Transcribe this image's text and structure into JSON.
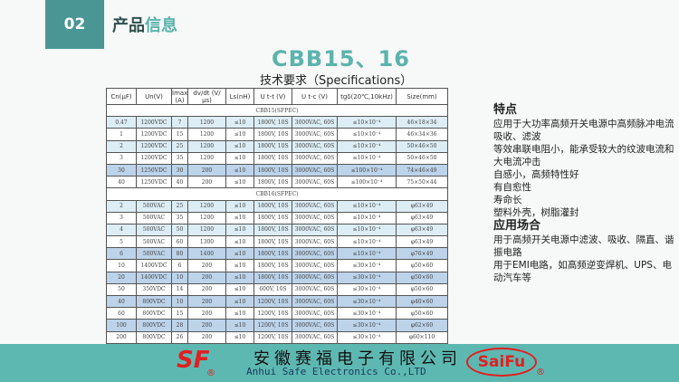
{
  "header": {
    "number": "02",
    "title_a": "产品",
    "title_b": "信息"
  },
  "model": "CBB15、16",
  "spec_title": "技术要求（Specifications）",
  "table": {
    "columns": [
      "Cn(μF)",
      "Un(V)",
      "Imax (A)",
      "dv/dt (V/μs)",
      "Ls(nH)",
      "U t-t (V)",
      "U t-c (V)",
      "tgδ(20℃,10kHz)",
      "Size(mm)"
    ],
    "section1": "CBB15(SFPEC)",
    "rows1": [
      [
        "0.47",
        "1200VDC",
        "7",
        "1200",
        "≤10",
        "1800V, 10S",
        "3000VAC, 60S",
        "≤10×10⁻⁴",
        "46×18×34"
      ],
      [
        "1",
        "1200VDC",
        "15",
        "1200",
        "≤10",
        "1800V, 10S",
        "3000VAC, 60S",
        "≤10×10⁻⁴",
        "46×34×36"
      ],
      [
        "2",
        "1200VDC",
        "25",
        "1200",
        "≤10",
        "1800V, 10S",
        "3000VAC, 60S",
        "≤10×10⁻⁴",
        "50×46×50"
      ],
      [
        "3",
        "1200VDC",
        "35",
        "1200",
        "≤10",
        "1800V, 10S",
        "3000VAC, 60S",
        "≤10×10⁻⁴",
        "50×46×50"
      ],
      [
        "30",
        "1250VDC",
        "30",
        "200",
        "≤10",
        "1800V, 10S",
        "3000VAC, 60S",
        "≤100×10⁻⁴",
        "74×46×49"
      ],
      [
        "40",
        "1250VDC",
        "40",
        "200",
        "≤10",
        "1800V, 10S",
        "3000VAC, 60S",
        "≤100×10⁻⁴",
        "75×50×44"
      ]
    ],
    "section2": "CBB16(SFPEC)",
    "rows2": [
      [
        "2",
        "500VAC",
        "25",
        "1200",
        "≤10",
        "1800V, 10S",
        "3000VAC, 60S",
        "≤10×10⁻⁴",
        "φ63×49"
      ],
      [
        "3",
        "500VAC",
        "35",
        "1200",
        "≤10",
        "1800V, 10S",
        "3000VAC, 60S",
        "≤10×10⁻⁴",
        "φ63×49"
      ],
      [
        "4",
        "500VAC",
        "50",
        "1200",
        "≤10",
        "1800V, 10S",
        "3000VAC, 60S",
        "≤10×10⁻⁴",
        "φ63×49"
      ],
      [
        "5",
        "500VAC",
        "60",
        "1300",
        "≤10",
        "1800V, 10S",
        "3000VAC, 60S",
        "≤10×10⁻⁴",
        "φ63×49"
      ],
      [
        "6",
        "500VAC",
        "80",
        "1400",
        "≤10",
        "1800V, 10S",
        "3000VAC, 60S",
        "≤10×10⁻⁴",
        "φ76×49"
      ],
      [
        "10",
        "1400VDC",
        "6",
        "200",
        "≤10",
        "1800V, 10S",
        "3000VAC, 60S",
        "≤30×10⁻⁴",
        "φ50×60"
      ],
      [
        "20",
        "1400VDC",
        "10",
        "200",
        "≤10",
        "1800V, 10S",
        "3000VAC, 60S",
        "≤30×10⁻⁴",
        "φ50×60"
      ],
      [
        "50",
        "350VDC",
        "14",
        "200",
        "≤10",
        "600V, 10S",
        "3000VAC, 60S",
        "≤30×10⁻⁴",
        "φ50×60"
      ],
      [
        "40",
        "800VDC",
        "10",
        "200",
        "≤10",
        "1200V, 10S",
        "3000VAC, 60S",
        "≤30×10⁻⁴",
        "φ40×60"
      ],
      [
        "60",
        "800VDC",
        "15",
        "200",
        "≤10",
        "1200V, 10S",
        "3000VAC, 60S",
        "≤30×10⁻⁴",
        "φ50×60"
      ],
      [
        "100",
        "800VDC",
        "28",
        "200",
        "≤10",
        "1200V, 10S",
        "3000VAC, 60S",
        "≤30×10⁻⁴",
        "φ62×60"
      ],
      [
        "200",
        "800VDC",
        "26",
        "200",
        "≤10",
        "1200V, 10S",
        "3000VAC, 60S",
        "≤30×10⁻⁴",
        "φ60×110"
      ]
    ],
    "row_styles1": [
      "a",
      "b",
      "a",
      "b",
      "h",
      "b"
    ],
    "row_styles2": [
      "a",
      "b",
      "a",
      "b",
      "h",
      "b",
      "h",
      "b",
      "h",
      "b",
      "h",
      "b"
    ]
  },
  "features": {
    "heading": "特点",
    "lines": [
      "应用于大功率高频开关电源中高频脉冲电流吸收、滤波",
      "等效串联电阻小，能承受较大的纹波电流和大电流冲击",
      "自感小，高频特性好",
      "有自愈性",
      "寿命长",
      "塑料外壳，树脂灌封"
    ]
  },
  "applications": {
    "heading": "应用场合",
    "lines": [
      "用于高频开关电源中滤波、吸收、隔直、谐振电路",
      "用于EMI电路，如高频逆变焊机、UPS、电动汽车等"
    ]
  },
  "footer": {
    "logo_left": "SF",
    "company_cn": "安徽赛福电子有限公司",
    "company_en": "Anhui Safe Electronics Co.,LTD",
    "logo_right": "SaiFu",
    "registered": "®"
  },
  "colors": {
    "accent": "#5bb3ad",
    "badge": "#4a9694",
    "footer": "#5eb8b2",
    "logo": "#e02020"
  }
}
